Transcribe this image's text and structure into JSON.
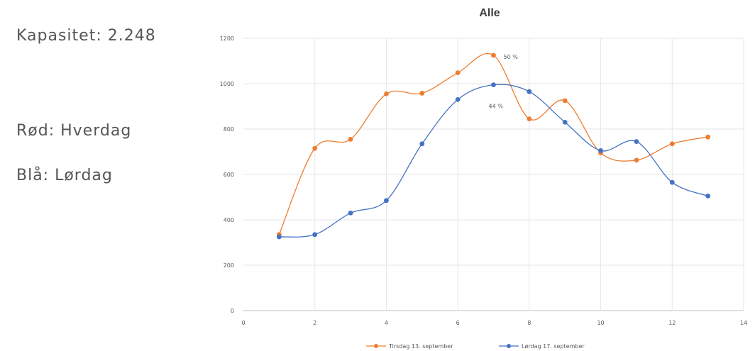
{
  "side_notes": {
    "capacity": "Kapasitet: 2.248",
    "red_label": "Rød: Hverdag",
    "blue_label": "Blå: Lørdag"
  },
  "chart_data": {
    "type": "line",
    "title": "Alle",
    "xlabel": "",
    "ylabel": "",
    "xlim": [
      0,
      14
    ],
    "ylim": [
      0,
      1200
    ],
    "x_ticks": [
      0,
      2,
      4,
      6,
      8,
      10,
      12,
      14
    ],
    "y_ticks": [
      0,
      200,
      400,
      600,
      800,
      1000,
      1200
    ],
    "grid": true,
    "smooth": true,
    "legend_position": "bottom",
    "series": [
      {
        "name": "Tirsdag 13. september",
        "color": "#ED7D31",
        "x": [
          1,
          2,
          3,
          4,
          5,
          6,
          7,
          8,
          9,
          10,
          11,
          12,
          13
        ],
        "y": [
          335,
          715,
          755,
          955,
          958,
          1048,
          1125,
          845,
          925,
          695,
          663,
          735,
          765
        ]
      },
      {
        "name": "Lørdag 17. september",
        "color": "#4472C4",
        "x": [
          1,
          2,
          3,
          4,
          5,
          6,
          7,
          8,
          9,
          10,
          11,
          12,
          13
        ],
        "y": [
          325,
          335,
          430,
          485,
          735,
          930,
          995,
          965,
          830,
          705,
          745,
          565,
          505
        ]
      }
    ],
    "annotations": [
      {
        "series": 0,
        "index": 6,
        "text": "50 %"
      },
      {
        "series": 1,
        "index": 6,
        "text": "44 %"
      }
    ]
  }
}
